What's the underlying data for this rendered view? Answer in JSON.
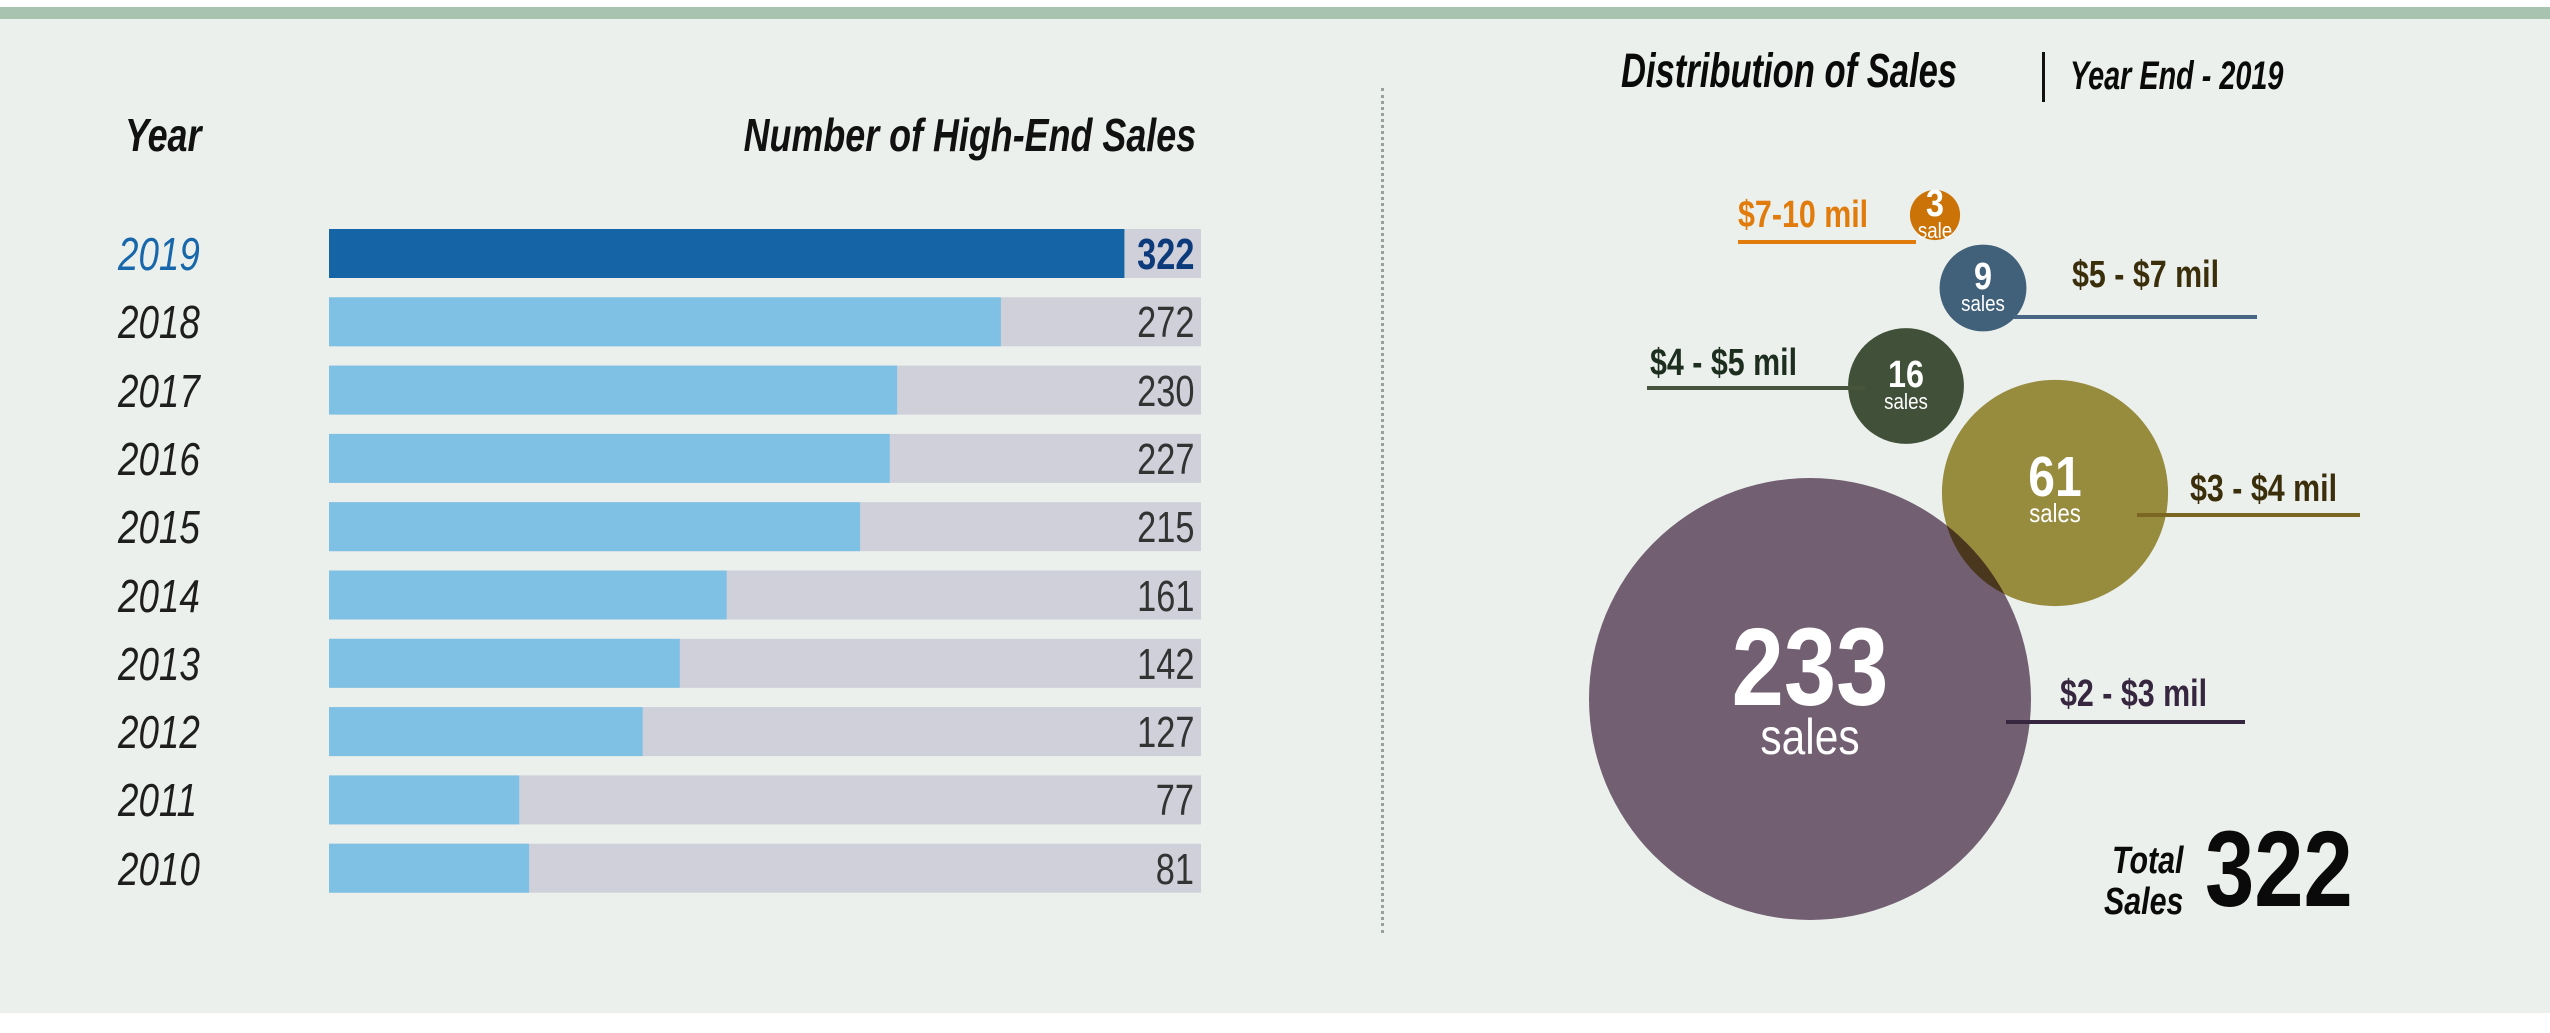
{
  "left_panel": {
    "year_header": "Year",
    "sales_header": "Number of High-End Sales"
  },
  "right_panel": {
    "title": "Distribution of Sales",
    "subtitle": "Year End - 2019",
    "total_label_line1": "Total",
    "total_label_line2": "Sales",
    "total_value": "322"
  },
  "colors": {
    "page_background": "#ebf0ec",
    "top_band": "#a8c4b1",
    "bar_highlight": "#1564a6",
    "bar_default": "#7fc1e4",
    "bar_track": "#cfd0d9",
    "year_highlight": "#1867ab",
    "value_highlight": "#0d3a7a"
  },
  "chart_data": [
    {
      "type": "bar",
      "orientation": "horizontal",
      "title": "Number of High-End Sales",
      "xlabel": "Number of High-End Sales",
      "ylabel": "Year",
      "categories": [
        "2019",
        "2018",
        "2017",
        "2016",
        "2015",
        "2014",
        "2013",
        "2012",
        "2011",
        "2010"
      ],
      "values": [
        322,
        272,
        230,
        227,
        215,
        161,
        142,
        127,
        77,
        81
      ],
      "value_labels": [
        "322",
        "272",
        "230",
        "227",
        "215",
        "161",
        "142",
        "127",
        "77",
        "81"
      ],
      "highlight": "2019",
      "xlim": [
        0,
        353
      ],
      "grid": false,
      "legend": "none"
    },
    {
      "type": "bubble",
      "title": "Distribution of Sales",
      "subtitle": "Year End - 2019",
      "total": 322,
      "series": [
        {
          "range": "$7-10 mil",
          "value": 3,
          "unit": "sale",
          "color": "#dd7a06",
          "label_color": "#e07b0c",
          "line_color": "#e07b0c"
        },
        {
          "range": "$5 - $7 mil",
          "value": 9,
          "unit": "sales",
          "color": "#466683",
          "label_color": "#3b2e0b",
          "line_color": "#466683"
        },
        {
          "range": "$4 - $5 mil",
          "value": 16,
          "unit": "sales",
          "color": "#46553c",
          "label_color": "#1d2e1f",
          "line_color": "#46553c"
        },
        {
          "range": "$3 - $4 mil",
          "value": 61,
          "unit": "sales",
          "color": "#a49443",
          "label_color": "#3b2e0b",
          "line_color": "#7b6722"
        },
        {
          "range": "$2 - $3 mil",
          "value": 233,
          "unit": "sales",
          "color": "#7c657b",
          "label_color": "#37263f",
          "line_color": "#37263f"
        }
      ]
    }
  ]
}
